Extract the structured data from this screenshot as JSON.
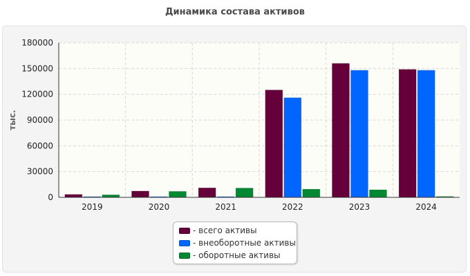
{
  "chart_data": {
    "type": "bar",
    "title": "Динамика состава активов",
    "ylabel": "тыс.",
    "xlabel": "",
    "categories": [
      "2019",
      "2020",
      "2021",
      "2022",
      "2023",
      "2024"
    ],
    "ylim": [
      0,
      180000
    ],
    "yticks": [
      0,
      30000,
      60000,
      90000,
      120000,
      150000,
      180000
    ],
    "grid": true,
    "legend_position": "bottom-center",
    "series": [
      {
        "name": "- всего активы",
        "color": "#66003a",
        "values": [
          3400,
          7300,
          11000,
          125000,
          156000,
          149000
        ]
      },
      {
        "name": "- внеоборотные активы",
        "color": "#0066ff",
        "values": [
          500,
          500,
          500,
          116000,
          148000,
          148000
        ]
      },
      {
        "name": "- оборотные активы",
        "color": "#008833",
        "values": [
          2900,
          6900,
          10800,
          9500,
          8800,
          1000
        ]
      }
    ]
  }
}
